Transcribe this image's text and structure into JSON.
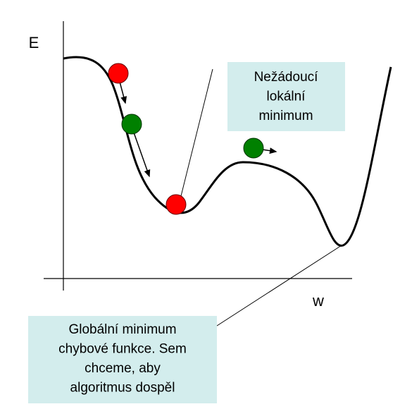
{
  "axis_labels": {
    "y": "E",
    "x": "w"
  },
  "callouts": [
    {
      "lines": [
        "Nežádoucí",
        "lokální",
        "minimum"
      ]
    },
    {
      "lines": [
        "Globální minimum",
        "chybové funkce. Sem",
        "chceme, aby",
        "algoritmus dospěl"
      ]
    }
  ]
}
